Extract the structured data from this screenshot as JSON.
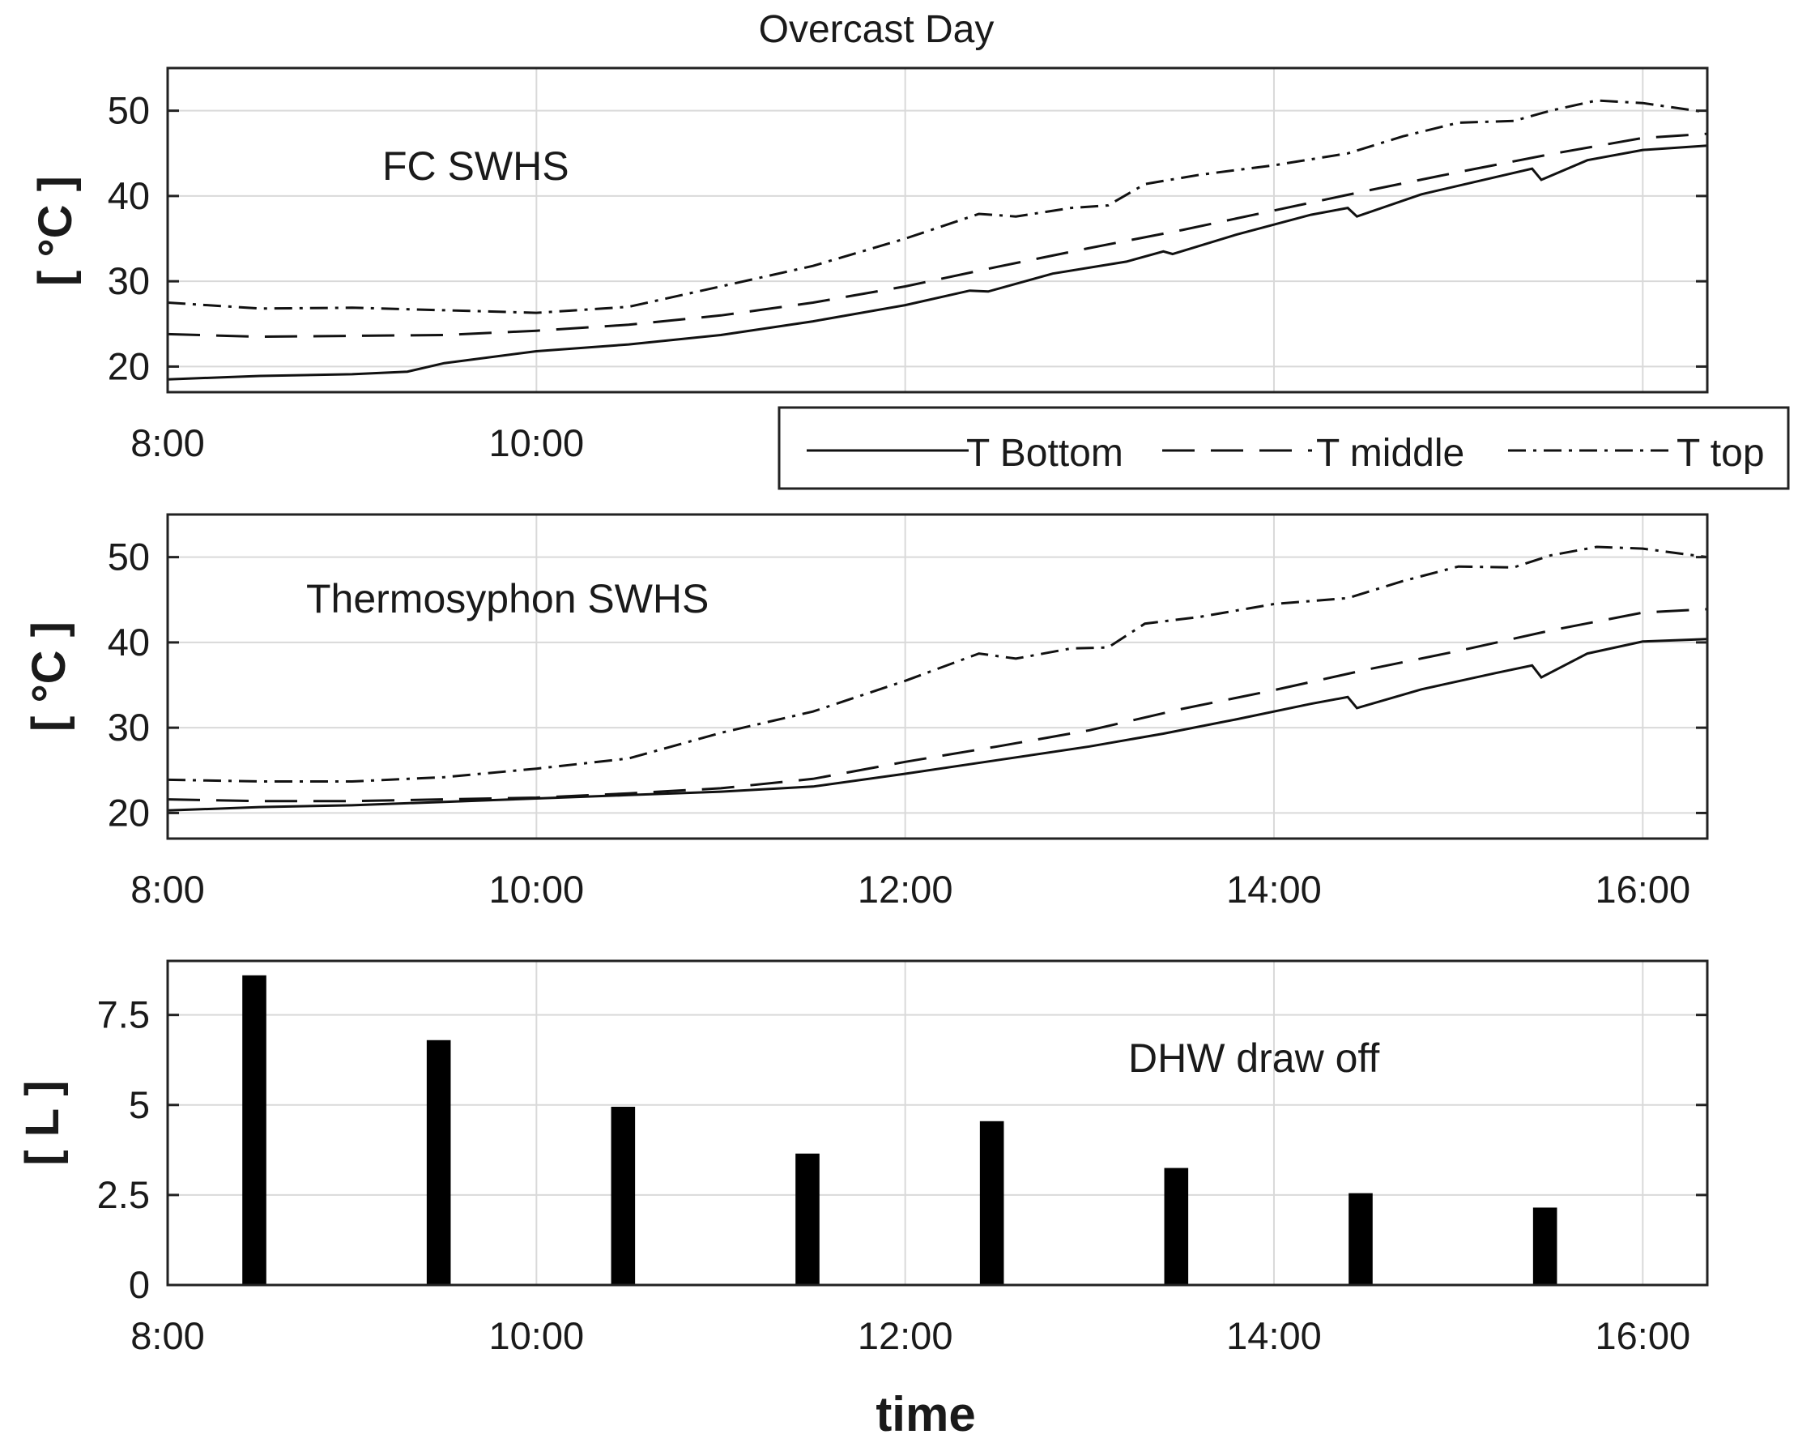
{
  "figure_title": "Overcast Day",
  "chart_data": [
    {
      "type": "line",
      "id": "fc",
      "annotation": "FC SWHS",
      "ylabel": "[ °C ]",
      "xlabel": "",
      "xlim": [
        8.0,
        16.35
      ],
      "ylim": [
        17,
        55
      ],
      "xticks": [
        "8:00",
        "10:00"
      ],
      "xtick_values": [
        8,
        10
      ],
      "yticks": [
        "20",
        "30",
        "40",
        "50"
      ],
      "ytick_values": [
        20,
        30,
        40,
        50
      ],
      "xgrid": [
        8,
        10,
        12,
        14,
        16
      ],
      "grid": true,
      "series": [
        {
          "name": "T Bottom",
          "style": "solid",
          "x": [
            8.0,
            8.5,
            9.0,
            9.3,
            9.5,
            10.0,
            10.5,
            11.0,
            11.5,
            12.0,
            12.35,
            12.45,
            12.8,
            13.2,
            13.4,
            13.45,
            13.8,
            14.2,
            14.4,
            14.45,
            14.8,
            15.2,
            15.4,
            15.45,
            15.7,
            16.0,
            16.35
          ],
          "y": [
            18.5,
            18.9,
            19.1,
            19.4,
            20.4,
            21.8,
            22.6,
            23.7,
            25.3,
            27.2,
            28.9,
            28.8,
            30.9,
            32.3,
            33.5,
            33.2,
            35.5,
            37.8,
            38.6,
            37.6,
            40.2,
            42.2,
            43.2,
            41.9,
            44.2,
            45.4,
            45.9
          ]
        },
        {
          "name": "T middle",
          "style": "dashed",
          "x": [
            8.0,
            8.5,
            9.0,
            9.5,
            10.0,
            10.5,
            11.0,
            11.5,
            12.0,
            12.5,
            13.0,
            13.5,
            14.0,
            14.5,
            15.0,
            15.5,
            16.0,
            16.35
          ],
          "y": [
            23.8,
            23.5,
            23.6,
            23.7,
            24.2,
            24.9,
            26.0,
            27.5,
            29.4,
            31.7,
            33.9,
            36.0,
            38.3,
            40.6,
            42.8,
            44.9,
            46.8,
            47.3
          ]
        },
        {
          "name": "T top",
          "style": "dashdot",
          "x": [
            8.0,
            8.5,
            9.0,
            9.5,
            10.0,
            10.5,
            11.0,
            11.5,
            12.0,
            12.4,
            12.6,
            12.9,
            13.1,
            13.3,
            13.6,
            14.0,
            14.4,
            14.7,
            15.0,
            15.3,
            15.5,
            15.75,
            16.0,
            16.35
          ],
          "y": [
            27.5,
            26.8,
            26.9,
            26.6,
            26.3,
            27.0,
            29.4,
            31.8,
            35.0,
            37.9,
            37.6,
            38.6,
            38.9,
            41.4,
            42.5,
            43.6,
            45.0,
            47.0,
            48.6,
            48.8,
            50.0,
            51.2,
            50.9,
            49.8
          ]
        }
      ]
    },
    {
      "type": "line",
      "id": "thermosyphon",
      "annotation": "Thermosyphon SWHS",
      "ylabel": "[ °C ]",
      "xlabel": "",
      "xlim": [
        8.0,
        16.35
      ],
      "ylim": [
        17,
        55
      ],
      "xticks": [
        "8:00",
        "10:00",
        "12:00",
        "14:00",
        "16:00"
      ],
      "xtick_values": [
        8,
        10,
        12,
        14,
        16
      ],
      "yticks": [
        "20",
        "30",
        "40",
        "50"
      ],
      "ytick_values": [
        20,
        30,
        40,
        50
      ],
      "xgrid": [
        8,
        10,
        12,
        14,
        16
      ],
      "grid": true,
      "series": [
        {
          "name": "T Bottom",
          "style": "solid",
          "x": [
            8.0,
            8.5,
            9.0,
            9.5,
            10.0,
            10.5,
            11.0,
            11.5,
            12.0,
            12.5,
            13.0,
            13.4,
            13.8,
            14.2,
            14.4,
            14.45,
            14.8,
            15.2,
            15.4,
            15.45,
            15.7,
            16.0,
            16.35
          ],
          "y": [
            20.3,
            20.7,
            20.9,
            21.3,
            21.7,
            22.1,
            22.5,
            23.1,
            24.6,
            26.2,
            27.8,
            29.3,
            31.0,
            32.8,
            33.6,
            32.3,
            34.5,
            36.4,
            37.3,
            35.9,
            38.7,
            40.1,
            40.4
          ]
        },
        {
          "name": "T middle",
          "style": "dashed",
          "x": [
            8.0,
            8.5,
            9.0,
            9.5,
            10.0,
            10.5,
            11.0,
            11.5,
            12.0,
            12.5,
            13.0,
            13.5,
            14.0,
            14.5,
            15.0,
            15.5,
            16.0,
            16.35
          ],
          "y": [
            21.6,
            21.4,
            21.4,
            21.6,
            21.8,
            22.3,
            22.9,
            24.0,
            26.0,
            27.8,
            29.7,
            32.2,
            34.4,
            36.8,
            39.0,
            41.4,
            43.5,
            43.9
          ]
        },
        {
          "name": "T top",
          "style": "dashdot",
          "x": [
            8.0,
            8.5,
            9.0,
            9.5,
            10.0,
            10.5,
            11.0,
            11.5,
            12.0,
            12.4,
            12.6,
            12.9,
            13.1,
            13.3,
            13.6,
            14.0,
            14.4,
            14.7,
            15.0,
            15.3,
            15.5,
            15.75,
            16.0,
            16.35
          ],
          "y": [
            23.9,
            23.7,
            23.7,
            24.2,
            25.2,
            26.4,
            29.4,
            31.9,
            35.5,
            38.7,
            38.1,
            39.3,
            39.4,
            42.2,
            43.0,
            44.5,
            45.2,
            47.2,
            48.9,
            48.8,
            50.2,
            51.2,
            51.0,
            50.0
          ]
        }
      ]
    },
    {
      "type": "bar",
      "id": "dhw",
      "annotation": "DHW draw off",
      "ylabel": "[ L ]",
      "xlabel": "time",
      "xlim": [
        8.0,
        16.35
      ],
      "ylim": [
        0,
        9
      ],
      "xticks": [
        "8:00",
        "10:00",
        "12:00",
        "14:00",
        "16:00"
      ],
      "xtick_values": [
        8,
        10,
        12,
        14,
        16
      ],
      "yticks": [
        "0",
        "2.5",
        "5",
        "7.5"
      ],
      "ytick_values": [
        0,
        2.5,
        5,
        7.5
      ],
      "xgrid": [
        8,
        10,
        12,
        14,
        16
      ],
      "grid": true,
      "bar_width_hours": 0.13,
      "categories": [
        "8:25",
        "9:25",
        "10:25",
        "11:25",
        "12:25",
        "13:25",
        "14:25",
        "15:25"
      ],
      "x": [
        8.47,
        9.47,
        10.47,
        11.47,
        12.47,
        13.47,
        14.47,
        15.47
      ],
      "values": [
        8.6,
        6.8,
        4.95,
        3.65,
        4.55,
        3.25,
        2.55,
        2.15
      ]
    }
  ],
  "legend": {
    "placement": "below top panel, right",
    "entries": [
      {
        "label": "T Bottom",
        "style": "solid"
      },
      {
        "label": "T middle",
        "style": "dashed"
      },
      {
        "label": "T top",
        "style": "dashdot"
      }
    ]
  }
}
